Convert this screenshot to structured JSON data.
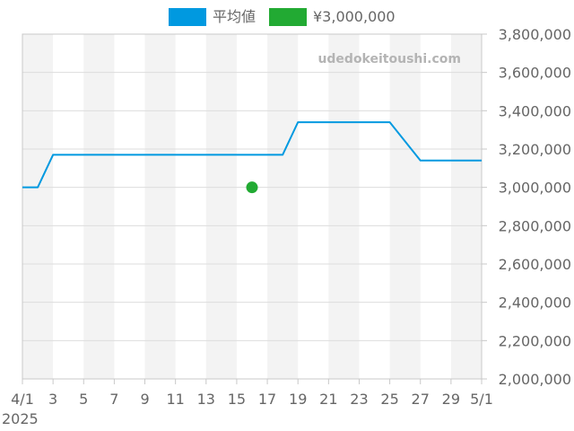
{
  "legend": {
    "items": [
      {
        "label": "平均値",
        "color": "#0099e0"
      },
      {
        "label": "¥3,000,000",
        "color": "#22aa33"
      }
    ]
  },
  "watermark": "udedokeitoushi.com",
  "chart_data": {
    "type": "line",
    "x_axis": {
      "start": "2025-04-01",
      "end": "2025-05-01",
      "tick_labels": [
        "4/1",
        "3",
        "5",
        "7",
        "9",
        "11",
        "13",
        "15",
        "17",
        "19",
        "21",
        "23",
        "25",
        "27",
        "29",
        "5/1"
      ],
      "year_label": "2025"
    },
    "y_axis": {
      "position": "right",
      "ylim": [
        2000000,
        3800000
      ],
      "tick_labels": [
        "2,000,000",
        "2,200,000",
        "2,400,000",
        "2,600,000",
        "2,800,000",
        "3,000,000",
        "3,200,000",
        "3,400,000",
        "3,600,000",
        "3,800,000"
      ]
    },
    "series": [
      {
        "name": "平均値",
        "type": "line",
        "color": "#0099e0",
        "points": [
          {
            "x": "2025-04-01",
            "y": 3000000
          },
          {
            "x": "2025-04-02",
            "y": 3000000
          },
          {
            "x": "2025-04-03",
            "y": 3170000
          },
          {
            "x": "2025-04-18",
            "y": 3170000
          },
          {
            "x": "2025-04-19",
            "y": 3340000
          },
          {
            "x": "2025-04-25",
            "y": 3340000
          },
          {
            "x": "2025-04-27",
            "y": 3140000
          },
          {
            "x": "2025-05-01",
            "y": 3140000
          }
        ]
      },
      {
        "name": "¥3,000,000",
        "type": "scatter",
        "color": "#22aa33",
        "points": [
          {
            "x": "2025-04-16",
            "y": 3000000
          }
        ]
      }
    ],
    "shaded_bands": [
      [
        "2025-04-01",
        "2025-04-03"
      ],
      [
        "2025-04-05",
        "2025-04-07"
      ],
      [
        "2025-04-09",
        "2025-04-11"
      ],
      [
        "2025-04-13",
        "2025-04-15"
      ],
      [
        "2025-04-17",
        "2025-04-19"
      ],
      [
        "2025-04-21",
        "2025-04-23"
      ],
      [
        "2025-04-25",
        "2025-04-27"
      ],
      [
        "2025-04-29",
        "2025-05-01"
      ]
    ],
    "grid": true,
    "legend_position": "top-center"
  }
}
